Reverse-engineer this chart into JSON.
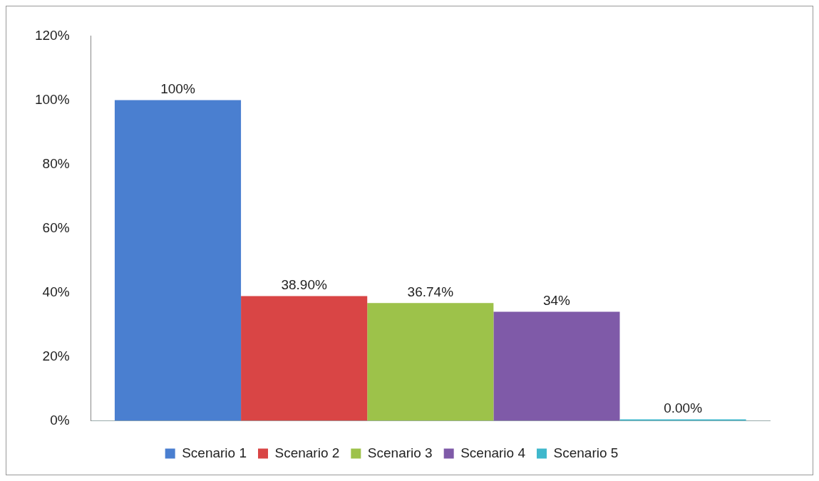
{
  "chart_data": {
    "type": "bar",
    "categories": [
      null
    ],
    "series": [
      {
        "name": "Scenario 1",
        "color": "#4a7fd0",
        "values": [
          100
        ],
        "value_labels": [
          "100%"
        ]
      },
      {
        "name": "Scenario 2",
        "color": "#d94545",
        "values": [
          38.9
        ],
        "value_labels": [
          "38.90%"
        ]
      },
      {
        "name": "Scenario 3",
        "color": "#9dc24a",
        "values": [
          36.74
        ],
        "value_labels": [
          "36.74%"
        ]
      },
      {
        "name": "Scenario 4",
        "color": "#7f5aa8",
        "values": [
          34
        ],
        "value_labels": [
          "34%"
        ]
      },
      {
        "name": "Scenario 5",
        "color": "#3fb8cc",
        "values": [
          0
        ],
        "value_labels": [
          "0.00%"
        ]
      }
    ],
    "ylim": [
      0,
      120
    ],
    "yticks": [
      {
        "value": 0,
        "label": "0%"
      },
      {
        "value": 20,
        "label": "20%"
      },
      {
        "value": 40,
        "label": "40%"
      },
      {
        "value": 60,
        "label": "60%"
      },
      {
        "value": 80,
        "label": "80%"
      },
      {
        "value": 100,
        "label": "100%"
      },
      {
        "value": 120,
        "label": "120%"
      }
    ],
    "grid": false,
    "legend": "bottom"
  }
}
